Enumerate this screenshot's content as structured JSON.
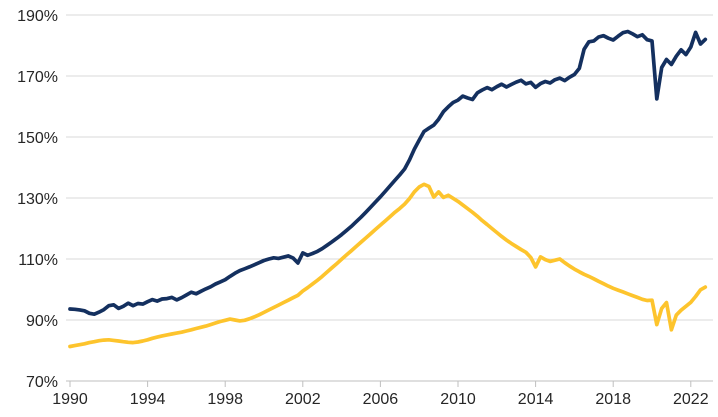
{
  "chart_data": {
    "type": "line",
    "title": "",
    "frequency": "quarterly",
    "start_year": 1990,
    "grid": "horizontal",
    "legend": "none",
    "x_axis": {
      "ticks": [
        1990,
        1994,
        1998,
        2002,
        2006,
        2010,
        2014,
        2018,
        2022
      ],
      "range_years": [
        1990,
        2023.3
      ]
    },
    "y_axis": {
      "ticks": [
        190,
        170,
        150,
        130,
        110,
        90,
        70
      ],
      "unit": "%",
      "range": [
        70,
        190
      ]
    },
    "colors": {
      "navy_line": "#14305f",
      "gold_line": "#fdc42d",
      "gridline": "#d9d9d9",
      "axis": "#bfbfbf",
      "tick_text": "#262626",
      "background": "#ffffff"
    },
    "series": [
      {
        "name": "gold-series",
        "color_key": "gold_line",
        "values": [
          81.3,
          81.6,
          81.9,
          82.2,
          82.6,
          82.9,
          83.2,
          83.4,
          83.5,
          83.3,
          83.1,
          82.9,
          82.7,
          82.6,
          82.8,
          83.1,
          83.5,
          84.0,
          84.4,
          84.8,
          85.1,
          85.4,
          85.7,
          86.0,
          86.4,
          86.8,
          87.2,
          87.6,
          88.0,
          88.5,
          89.0,
          89.5,
          89.9,
          90.3,
          90.0,
          89.7,
          89.9,
          90.4,
          91.0,
          91.7,
          92.5,
          93.3,
          94.1,
          94.9,
          95.7,
          96.5,
          97.3,
          98.1,
          99.5,
          100.6,
          101.8,
          103.0,
          104.3,
          105.7,
          107.1,
          108.5,
          109.9,
          111.3,
          112.7,
          114.1,
          115.5,
          116.9,
          118.3,
          119.7,
          121.1,
          122.5,
          123.9,
          125.3,
          126.6,
          128.0,
          129.8,
          132.0,
          133.6,
          134.5,
          133.8,
          130.3,
          132.0,
          130.2,
          130.9,
          129.9,
          128.9,
          127.7,
          126.5,
          125.3,
          124.0,
          122.6,
          121.3,
          120.0,
          118.7,
          117.4,
          116.2,
          115.1,
          114.1,
          113.1,
          112.2,
          110.5,
          107.4,
          110.7,
          109.8,
          109.2,
          109.6,
          110.0,
          108.8,
          107.7,
          106.7,
          105.8,
          105.0,
          104.3,
          103.5,
          102.7,
          101.9,
          101.1,
          100.4,
          99.8,
          99.2,
          98.6,
          98.0,
          97.4,
          96.8,
          96.4,
          96.5,
          88.5,
          93.8,
          95.7,
          86.8,
          91.6,
          93.2,
          94.5,
          95.8,
          97.7,
          99.9,
          100.8
        ]
      },
      {
        "name": "navy-series",
        "color_key": "navy_line",
        "values": [
          93.6,
          93.5,
          93.3,
          93.0,
          92.2,
          91.9,
          92.6,
          93.4,
          94.7,
          95.0,
          93.8,
          94.5,
          95.5,
          94.7,
          95.4,
          95.2,
          96.0,
          96.7,
          96.2,
          96.9,
          97.0,
          97.4,
          96.6,
          97.3,
          98.2,
          99.1,
          98.6,
          99.4,
          100.2,
          100.9,
          101.8,
          102.5,
          103.2,
          104.3,
          105.3,
          106.2,
          106.8,
          107.4,
          108.1,
          108.8,
          109.5,
          110.0,
          110.4,
          110.2,
          110.6,
          111.0,
          110.3,
          108.7,
          112.0,
          111.2,
          111.8,
          112.5,
          113.4,
          114.5,
          115.6,
          116.8,
          118.0,
          119.3,
          120.7,
          122.2,
          123.7,
          125.3,
          127.0,
          128.7,
          130.4,
          132.2,
          134.0,
          135.8,
          137.6,
          139.5,
          142.5,
          146.0,
          149.0,
          151.8,
          152.9,
          153.9,
          155.8,
          158.3,
          159.9,
          161.3,
          162.1,
          163.4,
          162.8,
          162.3,
          164.5,
          165.4,
          166.2,
          165.5,
          166.5,
          167.3,
          166.4,
          167.2,
          168.0,
          168.6,
          167.4,
          167.9,
          166.3,
          167.5,
          168.2,
          167.7,
          168.8,
          169.3,
          168.5,
          169.6,
          170.5,
          172.5,
          178.8,
          181.2,
          181.5,
          182.8,
          183.2,
          182.4,
          181.8,
          183.0,
          184.2,
          184.6,
          183.8,
          182.9,
          183.5,
          181.9,
          181.5,
          162.5,
          172.8,
          175.4,
          173.8,
          176.5,
          178.6,
          177.0,
          179.5,
          184.3,
          180.5,
          182.0
        ]
      }
    ]
  }
}
